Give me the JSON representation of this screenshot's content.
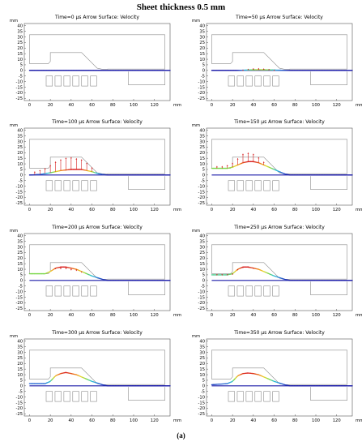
{
  "figure": {
    "title": "Sheet thickness 0.5 mm",
    "caption": "(a)"
  },
  "chart_data": [
    {
      "type": "line",
      "title": "Time=0 µs   Arrow Surface: Velocity",
      "time_us": 0,
      "xlabel": "mm",
      "ylabel": "mm",
      "xlim": [
        -5,
        135
      ],
      "ylim": [
        -27,
        42
      ],
      "xticks": [
        0,
        20,
        40,
        60,
        80,
        100,
        120
      ],
      "yticks": [
        40,
        35,
        30,
        25,
        20,
        15,
        10,
        5,
        0,
        -5,
        -10,
        -15,
        -20,
        -25
      ],
      "sheet_profile": {
        "x": [
          0,
          15,
          20,
          60,
          70,
          75,
          80,
          135
        ],
        "y": [
          0,
          0,
          0,
          0,
          0,
          0,
          0,
          0
        ]
      },
      "arrows": {
        "x": [],
        "v": []
      }
    },
    {
      "type": "line",
      "title": "Time=50 µs   Arrow Surface: Velocity",
      "time_us": 50,
      "xlabel": "mm",
      "ylabel": "mm",
      "xlim": [
        -5,
        135
      ],
      "ylim": [
        -27,
        42
      ],
      "xticks": [
        0,
        20,
        40,
        60,
        80,
        100,
        120
      ],
      "yticks": [
        40,
        35,
        30,
        25,
        20,
        15,
        10,
        5,
        0,
        -5,
        -10,
        -15,
        -20,
        -25
      ],
      "sheet_profile": {
        "x": [
          0,
          25,
          35,
          45,
          55,
          65,
          75,
          135
        ],
        "y": [
          0,
          0,
          0.4,
          0.6,
          0.5,
          0.2,
          0,
          0
        ]
      },
      "arrows": {
        "x": [
          30,
          35,
          40,
          45,
          50,
          55,
          60
        ],
        "v": [
          0.5,
          1,
          1.5,
          1.5,
          1.2,
          0.8,
          0.4
        ]
      }
    },
    {
      "type": "line",
      "title": "Time=100 µs   Arrow Surface: Velocity",
      "time_us": 100,
      "xlabel": "mm",
      "ylabel": "mm",
      "xlim": [
        -5,
        135
      ],
      "ylim": [
        -27,
        42
      ],
      "xticks": [
        0,
        20,
        40,
        60,
        80,
        100,
        120
      ],
      "yticks": [
        40,
        35,
        30,
        25,
        20,
        15,
        10,
        5,
        0,
        -5,
        -10,
        -15,
        -20,
        -25
      ],
      "sheet_profile": {
        "x": [
          0,
          10,
          20,
          30,
          40,
          50,
          60,
          65,
          70,
          75,
          135
        ],
        "y": [
          0,
          0.5,
          2,
          4,
          5,
          5,
          3,
          1.5,
          0.5,
          0,
          0
        ]
      },
      "arrows": {
        "x": [
          5,
          10,
          15,
          20,
          25,
          30,
          35,
          40,
          45,
          50,
          55,
          60
        ],
        "v": [
          3,
          4,
          5,
          7,
          9,
          10,
          11,
          11,
          10,
          9,
          7,
          4
        ]
      }
    },
    {
      "type": "line",
      "title": "Time=150 µs   Arrow Surface: Velocity",
      "time_us": 150,
      "xlabel": "mm",
      "ylabel": "mm",
      "xlim": [
        -5,
        135
      ],
      "ylim": [
        -27,
        42
      ],
      "xticks": [
        0,
        20,
        40,
        60,
        80,
        100,
        120
      ],
      "yticks": [
        40,
        35,
        30,
        25,
        20,
        15,
        10,
        5,
        0,
        -5,
        -10,
        -15,
        -20,
        -25
      ],
      "sheet_profile": {
        "x": [
          0,
          15,
          20,
          25,
          30,
          35,
          40,
          45,
          50,
          55,
          60,
          65,
          70,
          75,
          135
        ],
        "y": [
          6,
          6,
          7,
          9,
          11,
          12,
          12,
          11,
          9,
          7,
          5,
          3,
          1,
          0,
          0
        ]
      },
      "arrows": {
        "x": [
          5,
          10,
          15,
          20,
          25,
          30,
          35,
          40,
          45,
          50
        ],
        "v": [
          2,
          2,
          3,
          4,
          6,
          8,
          8,
          7,
          5,
          3
        ]
      }
    },
    {
      "type": "line",
      "title": "Time=200 µs   Arrow Surface: Velocity",
      "time_us": 200,
      "xlabel": "mm",
      "ylabel": "mm",
      "xlim": [
        -5,
        135
      ],
      "ylim": [
        -27,
        42
      ],
      "xticks": [
        0,
        20,
        40,
        60,
        80,
        100,
        120
      ],
      "yticks": [
        40,
        35,
        30,
        25,
        20,
        15,
        10,
        5,
        0,
        -5,
        -10,
        -15,
        -20,
        -25
      ],
      "sheet_profile": {
        "x": [
          0,
          15,
          20,
          25,
          30,
          35,
          40,
          45,
          50,
          55,
          60,
          65,
          70,
          75,
          135
        ],
        "y": [
          6,
          6,
          8,
          11,
          12,
          12,
          11,
          10,
          8,
          6,
          4,
          2.5,
          1,
          0,
          0
        ]
      },
      "arrows": {
        "x": [
          25,
          30,
          35,
          40,
          45,
          50
        ],
        "v": [
          -1,
          -2,
          -2,
          -2,
          -1.5,
          -1
        ]
      }
    },
    {
      "type": "line",
      "title": "Time=250 µs   Arrow Surface: Velocity",
      "time_us": 250,
      "xlabel": "mm",
      "ylabel": "mm",
      "xlim": [
        -5,
        135
      ],
      "ylim": [
        -27,
        42
      ],
      "xticks": [
        0,
        20,
        40,
        60,
        80,
        100,
        120
      ],
      "yticks": [
        40,
        35,
        30,
        25,
        20,
        15,
        10,
        5,
        0,
        -5,
        -10,
        -15,
        -20,
        -25
      ],
      "sheet_profile": {
        "x": [
          0,
          15,
          20,
          25,
          30,
          35,
          40,
          45,
          50,
          55,
          60,
          65,
          70,
          75,
          135
        ],
        "y": [
          5,
          5,
          6,
          10,
          12,
          12,
          11,
          10,
          8,
          6,
          4,
          2.5,
          1,
          0,
          0
        ]
      },
      "arrows": {
        "x": [
          5,
          10,
          15,
          20,
          25,
          30,
          35,
          40
        ],
        "v": [
          -0.5,
          -0.5,
          -0.5,
          -1,
          -1,
          -1,
          -0.5,
          -0.5
        ]
      }
    },
    {
      "type": "line",
      "title": "Time=300 µs   Arrow Surface: Velocity",
      "time_us": 300,
      "xlabel": "mm",
      "ylabel": "mm",
      "xlim": [
        -5,
        135
      ],
      "ylim": [
        -27,
        42
      ],
      "xticks": [
        0,
        20,
        40,
        60,
        80,
        100,
        120
      ],
      "yticks": [
        40,
        35,
        30,
        25,
        20,
        15,
        10,
        5,
        0,
        -5,
        -10,
        -15,
        -20,
        -25
      ],
      "sheet_profile": {
        "x": [
          0,
          15,
          20,
          25,
          30,
          35,
          40,
          45,
          50,
          55,
          60,
          65,
          70,
          75,
          135
        ],
        "y": [
          2,
          2,
          4,
          9,
          11,
          12,
          11,
          10,
          8,
          6,
          4,
          2.5,
          1,
          0,
          0
        ]
      },
      "arrows": {
        "x": [],
        "v": []
      }
    },
    {
      "type": "line",
      "title": "Time=350 µs   Arrow Surface: Velocity",
      "time_us": 350,
      "xlabel": "mm",
      "ylabel": "mm",
      "xlim": [
        -5,
        135
      ],
      "ylim": [
        -27,
        42
      ],
      "xticks": [
        0,
        20,
        40,
        60,
        80,
        100,
        120
      ],
      "yticks": [
        40,
        35,
        30,
        25,
        20,
        15,
        10,
        5,
        0,
        -5,
        -10,
        -15,
        -20,
        -25
      ],
      "sheet_profile": {
        "x": [
          0,
          15,
          20,
          25,
          30,
          35,
          40,
          45,
          50,
          55,
          60,
          65,
          70,
          75,
          135
        ],
        "y": [
          1,
          2,
          4,
          9,
          11,
          11.5,
          11,
          10,
          8,
          6,
          4,
          2.5,
          1,
          0,
          0
        ]
      },
      "arrows": {
        "x": [],
        "v": []
      }
    }
  ],
  "colors": {
    "die_outline": "#8c8c8c",
    "sheet_base": "#1a1aa8",
    "arrow": "#d61c1c",
    "colormap": [
      "#1a1aa8",
      "#2d6fd6",
      "#27c0d8",
      "#7ad84a",
      "#e7d92a",
      "#f08a1e",
      "#d91c1c"
    ]
  }
}
